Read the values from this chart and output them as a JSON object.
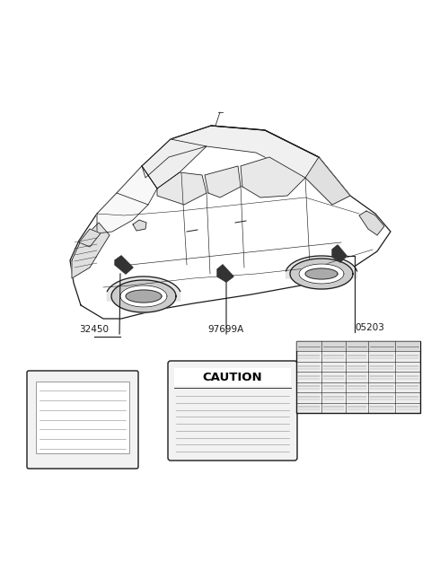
{
  "bg_color": "#ffffff",
  "line_color": "#1a1a1a",
  "label_32450": "32450",
  "label_97699A": "97699A",
  "label_05203": "05203",
  "caution_text": "CAUTION",
  "car_color": "#1a1a1a",
  "label_color": "#1a1a1a",
  "grid_color": "#888888",
  "figsize": [
    4.8,
    6.55
  ],
  "dpi": 100,
  "xlim": [
    0,
    480
  ],
  "ylim": [
    655,
    0
  ]
}
